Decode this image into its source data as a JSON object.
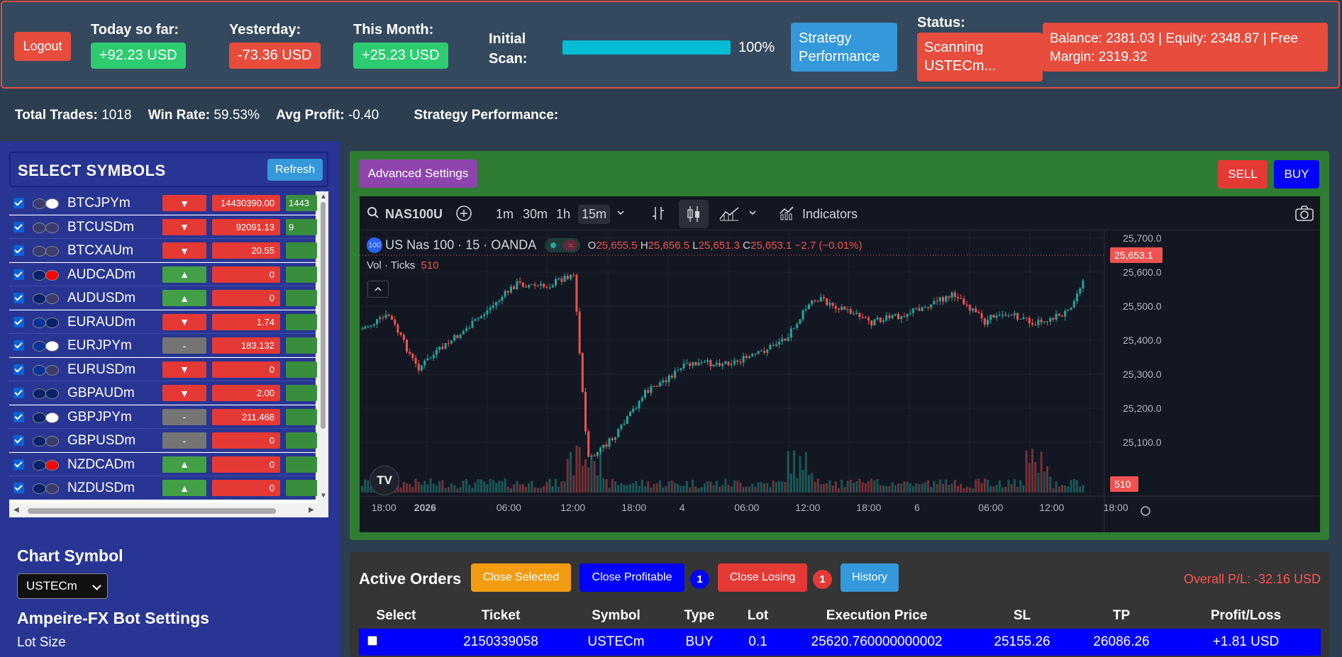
{
  "header": {
    "logout_label": "Logout",
    "today": {
      "title": "Today so far:",
      "value": "+92.23 USD"
    },
    "yesterday": {
      "title": "Yesterday:",
      "value": "-73.36 USD"
    },
    "month": {
      "title": "This Month:",
      "value": "+25.23 USD"
    },
    "scan": {
      "title_line1": "Initial",
      "title_line2": "Scan:",
      "percent": "100%",
      "progress": 1.0
    },
    "strategy_button": {
      "line1": "Strategy",
      "line2": "Performance"
    },
    "status": {
      "title": "Status:",
      "line1": "Scanning",
      "line2": "USTECm..."
    },
    "balance": {
      "line1": "Balance: 2381.03 | Equity: 2348.87 | Free",
      "line2": "Margin: 2319.32"
    }
  },
  "stats": {
    "total_trades_label": "Total Trades:",
    "total_trades": "1018",
    "win_rate_label": "Win Rate:",
    "win_rate": "59.53%",
    "avg_profit_label": "Avg Profit:",
    "avg_profit": "-0.40",
    "strategy_label": "Strategy Performance:"
  },
  "symbols_panel": {
    "title": "SELECT SYMBOLS",
    "refresh_label": "Refresh",
    "symbols": [
      {
        "name": "BTCJPYm",
        "dir": "▼",
        "dir_type": "down",
        "price": "14430390.00",
        "extra": "1443",
        "flags": [
          "#3c3b6e",
          "#ffffff"
        ],
        "flag2": "#bc002d"
      },
      {
        "name": "BTCUSDm",
        "dir": "▼",
        "dir_type": "down",
        "price": "92091.13",
        "extra": "9",
        "flags": [
          "#3c3b6e",
          "#3c3b6e"
        ]
      },
      {
        "name": "BTCXAUm",
        "dir": "▼",
        "dir_type": "down",
        "price": "20.55",
        "extra": "",
        "flags": [
          "#3c3b6e",
          "#3c3b6e"
        ]
      },
      {
        "name": "AUDCADm",
        "dir": "▲",
        "dir_type": "up",
        "price": "0",
        "extra": "",
        "flags": [
          "#012169",
          "#ff0000"
        ]
      },
      {
        "name": "AUDUSDm",
        "dir": "▲",
        "dir_type": "up",
        "price": "0",
        "extra": "",
        "flags": [
          "#012169",
          "#3c3b6e"
        ]
      },
      {
        "name": "EURAUDm",
        "dir": "▼",
        "dir_type": "down",
        "price": "1.74",
        "extra": "",
        "flags": [
          "#003399",
          "#012169"
        ]
      },
      {
        "name": "EURJPYm",
        "dir": "-",
        "dir_type": "flat",
        "price": "183.132",
        "extra": "",
        "flags": [
          "#003399",
          "#ffffff"
        ]
      },
      {
        "name": "EURUSDm",
        "dir": "▼",
        "dir_type": "down",
        "price": "0",
        "extra": "",
        "flags": [
          "#003399",
          "#3c3b6e"
        ]
      },
      {
        "name": "GBPAUDm",
        "dir": "▼",
        "dir_type": "down",
        "price": "2.00",
        "extra": "",
        "flags": [
          "#012169",
          "#012169"
        ]
      },
      {
        "name": "GBPJPYm",
        "dir": "-",
        "dir_type": "flat",
        "price": "211.468",
        "extra": "",
        "flags": [
          "#012169",
          "#ffffff"
        ]
      },
      {
        "name": "GBPUSDm",
        "dir": "-",
        "dir_type": "flat",
        "price": "0",
        "extra": "",
        "flags": [
          "#012169",
          "#3c3b6e"
        ]
      },
      {
        "name": "NZDCADm",
        "dir": "▲",
        "dir_type": "up",
        "price": "0",
        "extra": "",
        "flags": [
          "#012169",
          "#ff0000"
        ]
      },
      {
        "name": "NZDUSDm",
        "dir": "▲",
        "dir_type": "up",
        "price": "0",
        "extra": "",
        "flags": [
          "#012169",
          "#3c3b6e"
        ]
      }
    ]
  },
  "chart_symbol": {
    "title": "Chart Symbol",
    "selected": "USTECm",
    "bot_settings_title": "Ampeire-FX Bot Settings",
    "lot_size_label": "Lot Size"
  },
  "chart_panel": {
    "advanced_label": "Advanced Settings",
    "sell_label": "SELL",
    "buy_label": "BUY",
    "toolbar": {
      "symbol": "NAS100U",
      "intervals": [
        "1m",
        "30m",
        "1h",
        "15m"
      ],
      "active_interval": "15m",
      "indicators_label": "Indicators"
    },
    "legend": {
      "badge": "100",
      "title": "US Nas 100 · 15 · OANDA",
      "o_label": "O",
      "o": "25,655.5",
      "h_label": "H",
      "h": "25,656.5",
      "l_label": "L",
      "l": "25,651.3",
      "c_label": "C",
      "c": "25,653.1",
      "change": "−2.7 (−0.01%)",
      "vol_label": "Vol · Ticks",
      "vol": "510"
    },
    "price_axis": [
      "25,700.0",
      "25,600.0",
      "25,500.0",
      "25,400.0",
      "25,300.0",
      "25,200.0",
      "25,100.0"
    ],
    "last_price": "25,653.1",
    "last_volume": "510",
    "time_axis": [
      "18:00",
      "2026",
      "06:00",
      "12:00",
      "18:00",
      "4",
      "06:00",
      "12:00",
      "18:00",
      "6",
      "06:00",
      "12:00",
      "18:00"
    ],
    "up_color": "#26a69a",
    "down_color": "#ef5350"
  },
  "orders": {
    "title": "Active Orders",
    "close_selected": "Close Selected",
    "close_profitable": "Close Profitable",
    "profitable_count": "1",
    "close_losing": "Close Losing",
    "losing_count": "1",
    "history": "History",
    "overall": "Overall P/L: -32.16 USD",
    "columns": [
      "Select",
      "Ticket",
      "Symbol",
      "Type",
      "Lot",
      "Execution Price",
      "SL",
      "TP",
      "Profit/Loss"
    ],
    "rows": [
      {
        "ticket": "2150339058",
        "symbol": "USTECm",
        "type": "BUY",
        "lot": "0.1",
        "price": "25620.760000000002",
        "sl": "25155.26",
        "tp": "26086.26",
        "pl": "+1.81 USD"
      }
    ]
  }
}
